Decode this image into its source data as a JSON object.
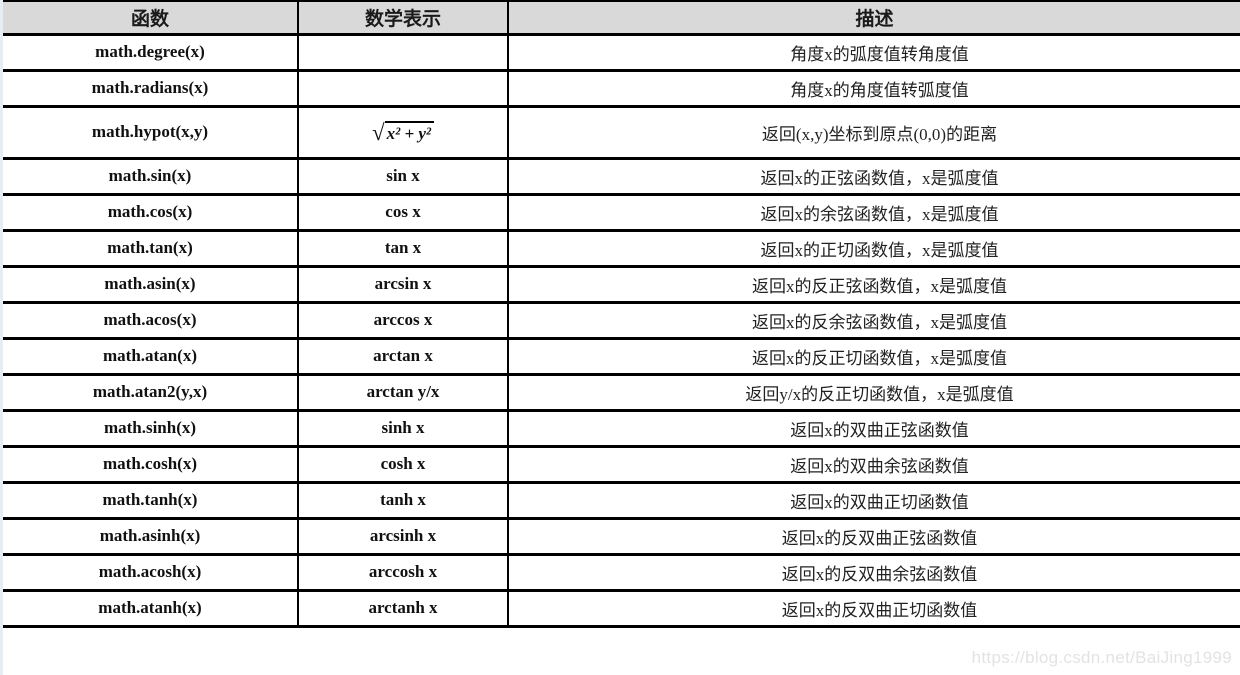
{
  "table": {
    "headers": [
      "函数",
      "数学表示",
      "描述"
    ],
    "rows": [
      {
        "func": "math.degree(x)",
        "math": "",
        "desc": "角度x的弧度值转角度值"
      },
      {
        "func": "math.radians(x)",
        "math": "",
        "desc": "角度x的角度值转弧度值"
      },
      {
        "func": "math.hypot(x,y)",
        "math": {
          "radical": "√",
          "radicand": "x² + y²"
        },
        "desc": "返回(x,y)坐标到原点(0,0)的距离",
        "tall": true
      },
      {
        "func": "math.sin(x)",
        "math": "sin x",
        "desc": "返回x的正弦函数值，x是弧度值"
      },
      {
        "func": "math.cos(x)",
        "math": "cos x",
        "desc": "返回x的余弦函数值，x是弧度值"
      },
      {
        "func": "math.tan(x)",
        "math": "tan x",
        "desc": "返回x的正切函数值，x是弧度值"
      },
      {
        "func": "math.asin(x)",
        "math": "arcsin x",
        "desc": "返回x的反正弦函数值，x是弧度值"
      },
      {
        "func": "math.acos(x)",
        "math": "arccos x",
        "desc": "返回x的反余弦函数值，x是弧度值"
      },
      {
        "func": "math.atan(x)",
        "math": "arctan x",
        "desc": "返回x的反正切函数值，x是弧度值"
      },
      {
        "func": "math.atan2(y,x)",
        "math": "arctan y/x",
        "desc": "返回y/x的反正切函数值，x是弧度值"
      },
      {
        "func": "math.sinh(x)",
        "math": "sinh x",
        "desc": "返回x的双曲正弦函数值"
      },
      {
        "func": "math.cosh(x)",
        "math": "cosh x",
        "desc": "返回x的双曲余弦函数值"
      },
      {
        "func": "math.tanh(x)",
        "math": "tanh x",
        "desc": "返回x的双曲正切函数值"
      },
      {
        "func": "math.asinh(x)",
        "math": "arcsinh x",
        "desc": "返回x的反双曲正弦函数值"
      },
      {
        "func": "math.acosh(x)",
        "math": "arccosh x",
        "desc": "返回x的反双曲余弦函数值"
      },
      {
        "func": "math.atanh(x)",
        "math": "arctanh x",
        "desc": "返回x的反双曲正切函数值"
      }
    ]
  },
  "watermark": "https://blog.csdn.net/BaiJing1999",
  "colors": {
    "header_bg": "#d9d9d9",
    "border": "#000000",
    "watermark": "#e3e3e3",
    "page_edge_strip": "#e7edf6"
  }
}
